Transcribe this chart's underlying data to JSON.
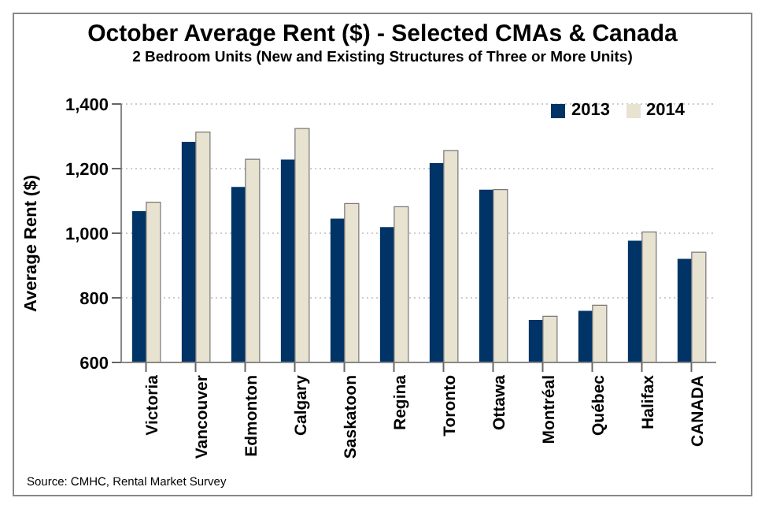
{
  "chart_data": {
    "type": "bar",
    "title": "October Average Rent ($) - Selected CMAs & Canada",
    "subtitle": "2 Bedroom Units (New and Existing Structures of Three or More Units)",
    "ylabel": "Average Rent ($)",
    "categories": [
      "Victoria",
      "Vancouver",
      "Edmonton",
      "Calgary",
      "Saskatoon",
      "Regina",
      "Toronto",
      "Ottawa",
      "Montréal",
      "Québec",
      "Halifax",
      "CANADA"
    ],
    "series": [
      {
        "name": "2013",
        "color": "#003366",
        "values": [
          1068,
          1283,
          1143,
          1228,
          1045,
          1019,
          1217,
          1135,
          732,
          760,
          977,
          921
        ]
      },
      {
        "name": "2014",
        "color": "#e8e2d0",
        "values": [
          1096,
          1313,
          1229,
          1324,
          1092,
          1082,
          1256,
          1135,
          743,
          777,
          1004,
          941
        ]
      }
    ],
    "ylim": [
      600,
      1400
    ],
    "yticks": [
      {
        "value": 600,
        "label": "600"
      },
      {
        "value": 800,
        "label": "800"
      },
      {
        "value": 1000,
        "label": "1,000"
      },
      {
        "value": 1200,
        "label": "1,200"
      },
      {
        "value": 1400,
        "label": "1,400"
      }
    ],
    "grid": "y",
    "legend": "top right",
    "annotations": [
      "Source: CMHC, Rental Market Survey"
    ]
  }
}
